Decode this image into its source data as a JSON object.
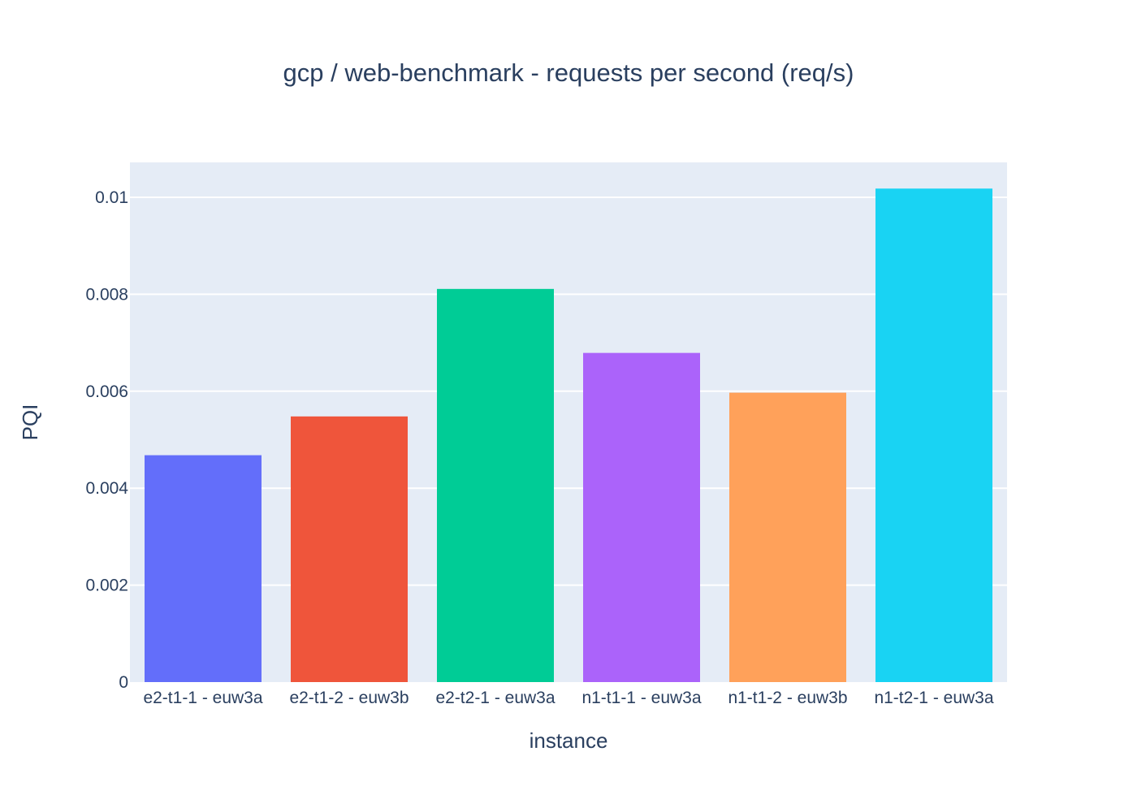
{
  "chart_data": {
    "type": "bar",
    "title": "gcp / web-benchmark - requests per second (req/s)",
    "xlabel": "instance",
    "ylabel": "PQI",
    "categories": [
      "e2-t1-1 - euw3a",
      "e2-t1-2 - euw3b",
      "e2-t2-1 - euw3a",
      "n1-t1-1 - euw3a",
      "n1-t1-2 - euw3b",
      "n1-t2-1 - euw3a"
    ],
    "values": [
      0.00468,
      0.00548,
      0.00811,
      0.00679,
      0.00597,
      0.01018
    ],
    "colors": [
      "#636efa",
      "#ef553b",
      "#00cc96",
      "#ab63fa",
      "#ffa15a",
      "#19d3f3"
    ],
    "yticks": [
      0,
      0.002,
      0.004,
      0.006,
      0.008,
      0.01
    ],
    "ytick_labels": [
      "0",
      "0.002",
      "0.004",
      "0.006",
      "0.008",
      "0.01"
    ],
    "ylim": [
      0,
      0.01072
    ],
    "grid": true,
    "legend": "none",
    "plot_bg": "#e5ecf6"
  }
}
